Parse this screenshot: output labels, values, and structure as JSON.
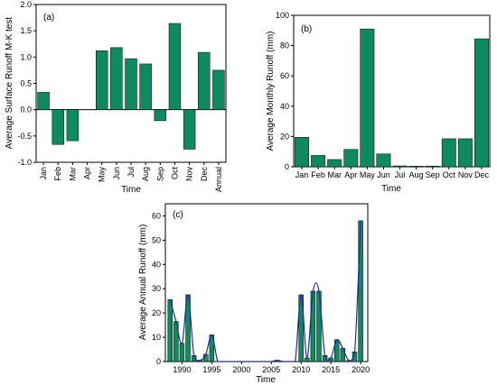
{
  "chart_data": [
    {
      "panel": "(a)",
      "type": "bar",
      "xlabel": "Time",
      "ylabel": "Average Surface Runoff M-K test",
      "ylim": [
        -1.0,
        2.0
      ],
      "yticks": [
        "-1.0",
        "-0.5",
        "0.0",
        "0.5",
        "1.0",
        "1.5",
        "2.0"
      ],
      "categories": [
        "Jan",
        "Feb",
        "Mar",
        "Apr",
        "May",
        "Jun",
        "Jul",
        "Aug",
        "Sep",
        "Oct",
        "Nov",
        "Dec",
        "Annual"
      ],
      "values": [
        0.33,
        -0.66,
        -0.59,
        0.0,
        1.12,
        1.18,
        0.97,
        0.87,
        -0.21,
        1.64,
        -0.75,
        1.09,
        0.75
      ],
      "color": "#0e8a5f"
    },
    {
      "panel": "(b)",
      "type": "bar",
      "xlabel": "Time",
      "ylabel": "Average Monthly Runoff (mm)",
      "ylim": [
        0,
        100
      ],
      "yticks": [
        "0",
        "20",
        "40",
        "60",
        "80",
        "100"
      ],
      "categories": [
        "Jan",
        "Feb",
        "Mar",
        "Apr",
        "May",
        "Jun",
        "Jul",
        "Aug",
        "Sep",
        "Oct",
        "Nov",
        "Dec"
      ],
      "values": [
        19.5,
        7.5,
        4.8,
        11.5,
        91,
        8.5,
        0.6,
        0.4,
        0.5,
        18.5,
        18.5,
        84.5
      ],
      "color": "#0e8a5f"
    },
    {
      "panel": "(c)",
      "type": "bar",
      "xlabel": "Time",
      "ylabel": "Average Annual Runoff (mm)",
      "ylim": [
        0,
        65
      ],
      "yticks": [
        "0",
        "10",
        "20",
        "30",
        "40",
        "50",
        "60"
      ],
      "xticks": [
        "1990",
        "1995",
        "2000",
        "2005",
        "2010",
        "2015",
        "2020"
      ],
      "x": [
        1988,
        1989,
        1990,
        1991,
        1992,
        1993,
        1994,
        1995,
        1996,
        1997,
        1998,
        1999,
        2000,
        2001,
        2002,
        2003,
        2004,
        2005,
        2006,
        2007,
        2008,
        2009,
        2010,
        2011,
        2012,
        2013,
        2014,
        2015,
        2016,
        2017,
        2018,
        2019,
        2020
      ],
      "values": [
        25.5,
        16.5,
        7.5,
        27.5,
        2.5,
        0.5,
        3.0,
        11.0,
        0,
        0,
        0,
        0,
        0,
        0,
        0,
        0,
        0,
        0,
        0.5,
        0,
        0,
        0,
        27.5,
        1.5,
        29.0,
        29.0,
        2.5,
        1.5,
        9.0,
        5.5,
        0.5,
        4.0,
        58.0
      ],
      "fit_line": true,
      "color": "#0e8a5f",
      "fit_color": "#1f2aa8"
    }
  ]
}
